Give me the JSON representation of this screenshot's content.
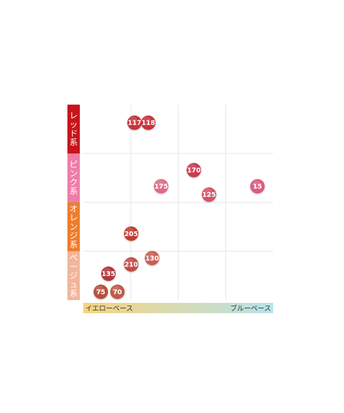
{
  "chart_data": {
    "type": "scatter",
    "title": "",
    "x_axis": {
      "left_label": "イエローベース",
      "right_label": "ブルーベース",
      "gradient_colors": [
        "#f6d37f",
        "#b7e2ea"
      ]
    },
    "categories": [
      {
        "name": "レッド系",
        "color": "#c8141b"
      },
      {
        "name": "ピンク系",
        "color": "#ee7da8"
      },
      {
        "name": "オレンジ系",
        "color": "#ef7d2c"
      },
      {
        "name": "ベージュ系",
        "color": "#f2b59b"
      }
    ],
    "x_range": [
      0,
      4
    ],
    "y_range": [
      0,
      4
    ],
    "grid": true,
    "points": [
      {
        "label": "117",
        "x": 1.08,
        "y": 3.63,
        "color": "#c9303a"
      },
      {
        "label": "118",
        "x": 1.37,
        "y": 3.63,
        "color": "#c9303a"
      },
      {
        "label": "170",
        "x": 2.33,
        "y": 2.66,
        "color": "#cc3a4e"
      },
      {
        "label": "175",
        "x": 1.64,
        "y": 2.33,
        "color": "#df6a87"
      },
      {
        "label": "125",
        "x": 2.65,
        "y": 2.16,
        "color": "#d25568"
      },
      {
        "label": "15",
        "x": 3.67,
        "y": 2.33,
        "color": "#db5c80"
      },
      {
        "label": "205",
        "x": 1.01,
        "y": 1.36,
        "color": "#c43b33"
      },
      {
        "label": "130",
        "x": 1.45,
        "y": 0.86,
        "color": "#c95e54"
      },
      {
        "label": "210",
        "x": 1.01,
        "y": 0.73,
        "color": "#c24e46"
      },
      {
        "label": "135",
        "x": 0.53,
        "y": 0.54,
        "color": "#b2393a"
      },
      {
        "label": "75",
        "x": 0.37,
        "y": 0.17,
        "color": "#b5513c"
      },
      {
        "label": "70",
        "x": 0.72,
        "y": 0.17,
        "color": "#c05a4a"
      }
    ]
  }
}
